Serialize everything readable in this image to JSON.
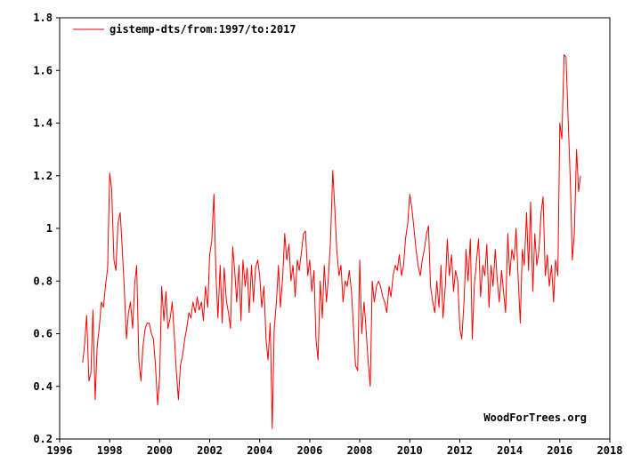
{
  "chart_data": {
    "type": "line",
    "legend": "top-left",
    "grid": false,
    "xlim": [
      1996,
      2018
    ],
    "ylim": [
      0.2,
      1.8
    ],
    "x_ticks": [
      "1996",
      "1998",
      "2000",
      "2002",
      "2004",
      "2006",
      "2008",
      "2010",
      "2012",
      "2014",
      "2016",
      "2018"
    ],
    "y_ticks": [
      "0.2",
      "0.4",
      "0.6",
      "0.8",
      "1",
      "1.2",
      "1.4",
      "1.6",
      "1.8"
    ],
    "colors": {
      "line": "#ff0000",
      "axis": "#000000",
      "background": "#ffffff"
    },
    "credit": "WoodForTrees.org",
    "series": [
      {
        "name": "gistemp-dts/from:1997/to:2017",
        "color": "#ff0000",
        "points": [
          [
            1996.92,
            0.49
          ],
          [
            1997.0,
            0.56
          ],
          [
            1997.08,
            0.67
          ],
          [
            1997.17,
            0.42
          ],
          [
            1997.25,
            0.45
          ],
          [
            1997.33,
            0.69
          ],
          [
            1997.42,
            0.35
          ],
          [
            1997.5,
            0.55
          ],
          [
            1997.58,
            0.62
          ],
          [
            1997.67,
            0.72
          ],
          [
            1997.75,
            0.7
          ],
          [
            1997.83,
            0.78
          ],
          [
            1997.92,
            0.85
          ],
          [
            1998.0,
            1.21
          ],
          [
            1998.08,
            1.15
          ],
          [
            1998.17,
            0.88
          ],
          [
            1998.25,
            0.84
          ],
          [
            1998.33,
            1.02
          ],
          [
            1998.42,
            1.06
          ],
          [
            1998.5,
            0.93
          ],
          [
            1998.58,
            0.78
          ],
          [
            1998.67,
            0.58
          ],
          [
            1998.75,
            0.68
          ],
          [
            1998.83,
            0.72
          ],
          [
            1998.92,
            0.62
          ],
          [
            1999.0,
            0.79
          ],
          [
            1999.08,
            0.86
          ],
          [
            1999.17,
            0.5
          ],
          [
            1999.25,
            0.42
          ],
          [
            1999.33,
            0.55
          ],
          [
            1999.42,
            0.62
          ],
          [
            1999.5,
            0.64
          ],
          [
            1999.58,
            0.64
          ],
          [
            1999.67,
            0.6
          ],
          [
            1999.75,
            0.58
          ],
          [
            1999.83,
            0.48
          ],
          [
            1999.92,
            0.33
          ],
          [
            2000.0,
            0.44
          ],
          [
            2000.08,
            0.78
          ],
          [
            2000.17,
            0.65
          ],
          [
            2000.25,
            0.76
          ],
          [
            2000.33,
            0.62
          ],
          [
            2000.42,
            0.66
          ],
          [
            2000.5,
            0.72
          ],
          [
            2000.58,
            0.6
          ],
          [
            2000.67,
            0.45
          ],
          [
            2000.75,
            0.35
          ],
          [
            2000.83,
            0.48
          ],
          [
            2000.92,
            0.52
          ],
          [
            2001.0,
            0.58
          ],
          [
            2001.08,
            0.62
          ],
          [
            2001.17,
            0.68
          ],
          [
            2001.25,
            0.66
          ],
          [
            2001.33,
            0.72
          ],
          [
            2001.42,
            0.68
          ],
          [
            2001.5,
            0.74
          ],
          [
            2001.58,
            0.69
          ],
          [
            2001.67,
            0.72
          ],
          [
            2001.75,
            0.65
          ],
          [
            2001.83,
            0.78
          ],
          [
            2001.92,
            0.7
          ],
          [
            2002.0,
            0.9
          ],
          [
            2002.08,
            0.95
          ],
          [
            2002.17,
            1.13
          ],
          [
            2002.25,
            0.82
          ],
          [
            2002.33,
            0.66
          ],
          [
            2002.42,
            0.86
          ],
          [
            2002.5,
            0.64
          ],
          [
            2002.58,
            0.85
          ],
          [
            2002.67,
            0.72
          ],
          [
            2002.75,
            0.68
          ],
          [
            2002.83,
            0.62
          ],
          [
            2002.92,
            0.93
          ],
          [
            2003.0,
            0.84
          ],
          [
            2003.08,
            0.72
          ],
          [
            2003.17,
            0.86
          ],
          [
            2003.25,
            0.65
          ],
          [
            2003.33,
            0.88
          ],
          [
            2003.42,
            0.78
          ],
          [
            2003.5,
            0.85
          ],
          [
            2003.58,
            0.68
          ],
          [
            2003.67,
            0.86
          ],
          [
            2003.75,
            0.72
          ],
          [
            2003.83,
            0.85
          ],
          [
            2003.92,
            0.88
          ],
          [
            2004.0,
            0.82
          ],
          [
            2004.08,
            0.7
          ],
          [
            2004.17,
            0.78
          ],
          [
            2004.25,
            0.58
          ],
          [
            2004.33,
            0.5
          ],
          [
            2004.42,
            0.64
          ],
          [
            2004.5,
            0.24
          ],
          [
            2004.58,
            0.62
          ],
          [
            2004.67,
            0.72
          ],
          [
            2004.75,
            0.86
          ],
          [
            2004.83,
            0.7
          ],
          [
            2004.92,
            0.82
          ],
          [
            2005.0,
            0.98
          ],
          [
            2005.08,
            0.88
          ],
          [
            2005.17,
            0.94
          ],
          [
            2005.25,
            0.8
          ],
          [
            2005.33,
            0.86
          ],
          [
            2005.42,
            0.74
          ],
          [
            2005.5,
            0.88
          ],
          [
            2005.58,
            0.84
          ],
          [
            2005.67,
            0.91
          ],
          [
            2005.75,
            0.98
          ],
          [
            2005.83,
            0.99
          ],
          [
            2005.92,
            0.82
          ],
          [
            2006.0,
            0.88
          ],
          [
            2006.08,
            0.76
          ],
          [
            2006.17,
            0.84
          ],
          [
            2006.25,
            0.58
          ],
          [
            2006.33,
            0.5
          ],
          [
            2006.42,
            0.8
          ],
          [
            2006.5,
            0.66
          ],
          [
            2006.58,
            0.86
          ],
          [
            2006.67,
            0.72
          ],
          [
            2006.75,
            0.82
          ],
          [
            2006.83,
            0.95
          ],
          [
            2006.92,
            1.22
          ],
          [
            2007.0,
            1.08
          ],
          [
            2007.08,
            0.92
          ],
          [
            2007.17,
            0.82
          ],
          [
            2007.25,
            0.86
          ],
          [
            2007.33,
            0.72
          ],
          [
            2007.42,
            0.8
          ],
          [
            2007.5,
            0.78
          ],
          [
            2007.58,
            0.84
          ],
          [
            2007.67,
            0.76
          ],
          [
            2007.75,
            0.62
          ],
          [
            2007.83,
            0.48
          ],
          [
            2007.92,
            0.46
          ],
          [
            2008.0,
            0.88
          ],
          [
            2008.08,
            0.6
          ],
          [
            2008.17,
            0.72
          ],
          [
            2008.25,
            0.62
          ],
          [
            2008.33,
            0.5
          ],
          [
            2008.42,
            0.4
          ],
          [
            2008.5,
            0.8
          ],
          [
            2008.58,
            0.72
          ],
          [
            2008.67,
            0.78
          ],
          [
            2008.75,
            0.8
          ],
          [
            2008.83,
            0.78
          ],
          [
            2008.92,
            0.74
          ],
          [
            2009.0,
            0.72
          ],
          [
            2009.08,
            0.68
          ],
          [
            2009.17,
            0.78
          ],
          [
            2009.25,
            0.74
          ],
          [
            2009.33,
            0.82
          ],
          [
            2009.42,
            0.86
          ],
          [
            2009.5,
            0.84
          ],
          [
            2009.58,
            0.9
          ],
          [
            2009.67,
            0.82
          ],
          [
            2009.75,
            0.86
          ],
          [
            2009.83,
            0.96
          ],
          [
            2009.92,
            1.02
          ],
          [
            2010.0,
            1.13
          ],
          [
            2010.08,
            1.08
          ],
          [
            2010.17,
            1.0
          ],
          [
            2010.25,
            0.92
          ],
          [
            2010.33,
            0.86
          ],
          [
            2010.42,
            0.82
          ],
          [
            2010.5,
            0.88
          ],
          [
            2010.58,
            0.92
          ],
          [
            2010.67,
            0.98
          ],
          [
            2010.75,
            1.01
          ],
          [
            2010.83,
            0.78
          ],
          [
            2010.92,
            0.72
          ],
          [
            2011.0,
            0.68
          ],
          [
            2011.08,
            0.8
          ],
          [
            2011.17,
            0.7
          ],
          [
            2011.25,
            0.86
          ],
          [
            2011.33,
            0.66
          ],
          [
            2011.42,
            0.78
          ],
          [
            2011.5,
            0.96
          ],
          [
            2011.58,
            0.82
          ],
          [
            2011.67,
            0.9
          ],
          [
            2011.75,
            0.76
          ],
          [
            2011.83,
            0.84
          ],
          [
            2011.92,
            0.8
          ],
          [
            2012.0,
            0.62
          ],
          [
            2012.08,
            0.58
          ],
          [
            2012.17,
            0.72
          ],
          [
            2012.25,
            0.92
          ],
          [
            2012.33,
            0.8
          ],
          [
            2012.42,
            0.96
          ],
          [
            2012.5,
            0.58
          ],
          [
            2012.58,
            0.78
          ],
          [
            2012.67,
            0.88
          ],
          [
            2012.75,
            0.96
          ],
          [
            2012.83,
            0.74
          ],
          [
            2012.92,
            0.86
          ],
          [
            2013.0,
            0.82
          ],
          [
            2013.08,
            0.94
          ],
          [
            2013.17,
            0.7
          ],
          [
            2013.25,
            0.86
          ],
          [
            2013.33,
            0.78
          ],
          [
            2013.42,
            0.92
          ],
          [
            2013.5,
            0.8
          ],
          [
            2013.58,
            0.72
          ],
          [
            2013.67,
            0.84
          ],
          [
            2013.75,
            0.76
          ],
          [
            2013.83,
            0.68
          ],
          [
            2013.92,
            0.98
          ],
          [
            2014.0,
            0.82
          ],
          [
            2014.08,
            0.92
          ],
          [
            2014.17,
            0.88
          ],
          [
            2014.25,
            1.0
          ],
          [
            2014.33,
            0.82
          ],
          [
            2014.42,
            0.64
          ],
          [
            2014.5,
            0.92
          ],
          [
            2014.58,
            0.86
          ],
          [
            2014.67,
            1.06
          ],
          [
            2014.75,
            0.84
          ],
          [
            2014.83,
            1.1
          ],
          [
            2014.92,
            0.76
          ],
          [
            2015.0,
            0.98
          ],
          [
            2015.08,
            0.86
          ],
          [
            2015.17,
            0.92
          ],
          [
            2015.25,
            1.06
          ],
          [
            2015.33,
            1.12
          ],
          [
            2015.42,
            0.82
          ],
          [
            2015.5,
            0.9
          ],
          [
            2015.58,
            0.78
          ],
          [
            2015.67,
            0.86
          ],
          [
            2015.75,
            0.72
          ],
          [
            2015.83,
            0.88
          ],
          [
            2015.92,
            0.82
          ],
          [
            2016.0,
            1.4
          ],
          [
            2016.08,
            1.34
          ],
          [
            2016.17,
            1.66
          ],
          [
            2016.25,
            1.65
          ],
          [
            2016.33,
            1.42
          ],
          [
            2016.42,
            1.18
          ],
          [
            2016.5,
            0.88
          ],
          [
            2016.58,
            0.98
          ],
          [
            2016.67,
            1.3
          ],
          [
            2016.75,
            1.14
          ],
          [
            2016.83,
            1.2
          ]
        ]
      }
    ]
  }
}
